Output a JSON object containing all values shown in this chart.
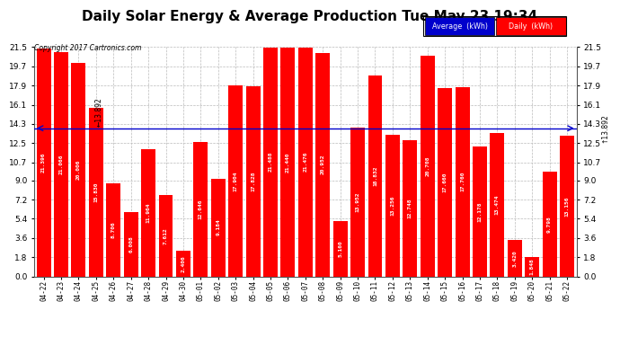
{
  "title": "Daily Solar Energy & Average Production Tue May 23 19:34",
  "copyright": "Copyright 2017 Cartronics.com",
  "categories": [
    "04-22",
    "04-23",
    "04-24",
    "04-25",
    "04-26",
    "04-27",
    "04-28",
    "04-29",
    "04-30",
    "05-01",
    "05-02",
    "05-03",
    "05-04",
    "05-05",
    "05-06",
    "05-07",
    "05-08",
    "05-09",
    "05-10",
    "05-11",
    "05-12",
    "05-13",
    "05-14",
    "05-15",
    "05-16",
    "05-17",
    "05-18",
    "05-19",
    "05-20",
    "05-21",
    "05-22"
  ],
  "values": [
    21.396,
    21.066,
    20.006,
    15.83,
    8.706,
    6.008,
    11.964,
    7.612,
    2.406,
    12.646,
    9.184,
    17.904,
    17.828,
    21.488,
    21.44,
    21.476,
    20.952,
    5.16,
    13.952,
    18.832,
    13.256,
    12.748,
    20.708,
    17.66,
    17.76,
    12.178,
    13.474,
    3.42,
    1.848,
    9.798,
    13.156
  ],
  "average": 13.892,
  "bar_color": "#FF0000",
  "average_line_color": "#0000CC",
  "ylim": [
    0,
    21.5
  ],
  "yticks": [
    0.0,
    1.8,
    3.6,
    5.4,
    7.2,
    9.0,
    10.7,
    12.5,
    14.3,
    16.1,
    17.9,
    19.7,
    21.5
  ],
  "background_color": "#FFFFFF",
  "grid_color": "#BBBBBB",
  "title_fontsize": 11,
  "bar_text_color": "#FFFFFF",
  "legend_avg_bg": "#0000CC",
  "legend_daily_bg": "#FF0000",
  "legend_text_color": "#FFFFFF",
  "avg_label_left": "←13.892",
  "avg_label_right": "↑13.892"
}
